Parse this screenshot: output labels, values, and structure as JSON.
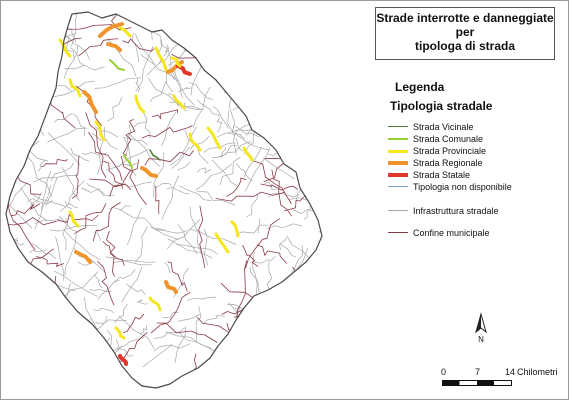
{
  "title": {
    "line1": "Strade interrotte e danneggiate",
    "line2": "per",
    "line3": "tipologa di strada"
  },
  "legend": {
    "heading": "Legenda",
    "subheading": "Tipologia stradale",
    "items": [
      {
        "label": "Strada Vicinale",
        "color": "#4a7a2e",
        "width": 1.5
      },
      {
        "label": "Strada Comunale",
        "color": "#9acd32",
        "width": 2
      },
      {
        "label": "Strada Provinciale",
        "color": "#f5e61e",
        "width": 3
      },
      {
        "label": "Strada Regionale",
        "color": "#f0952d",
        "width": 4
      },
      {
        "label": "Strada Statale",
        "color": "#e2362a",
        "width": 4
      },
      {
        "label": "Tipologia non disponibile",
        "color": "#7fa3d6",
        "width": 1.5
      },
      {
        "label": "Infrastruttura stradale",
        "color": "#a7a7a7",
        "width": 1.5
      },
      {
        "label": "Confine municipale",
        "color": "#8a3a45",
        "width": 1.2
      }
    ]
  },
  "north_arrow": {
    "label": "N"
  },
  "scale": {
    "ticks": [
      "0",
      "7",
      "14"
    ],
    "unit": "Chilometri"
  },
  "colors": {
    "region_fill": "#ffffff",
    "municipal_boundary": "#8a3a45",
    "road_network": "#a7a7a7"
  }
}
